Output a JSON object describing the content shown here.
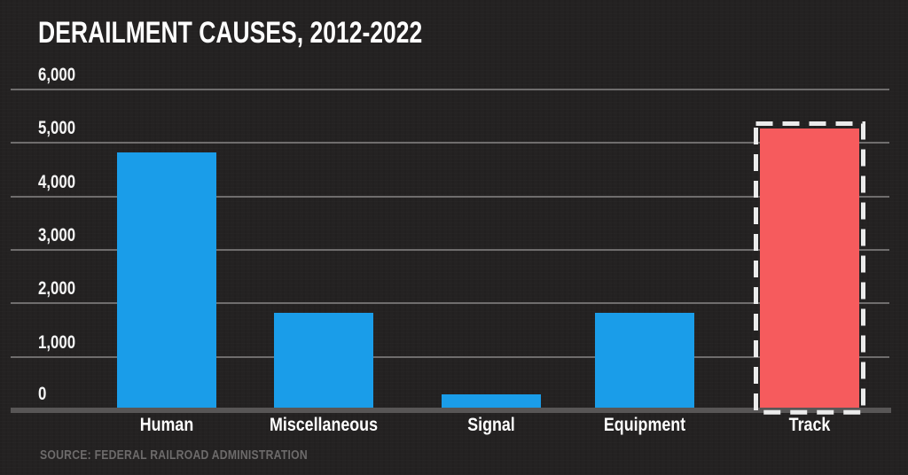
{
  "header": {
    "title": "DERAILMENT CAUSES, 2012-2022"
  },
  "footer": {
    "source": "SOURCE: FEDERAL RAILROAD ADMINISTRATION"
  },
  "chart_data": {
    "type": "bar",
    "title": "DERAILMENT CAUSES, 2012-2022",
    "categories": [
      "Human",
      "Miscellaneous",
      "Signal",
      "Equipment",
      "Track"
    ],
    "values": [
      4800,
      1800,
      280,
      1800,
      5250
    ],
    "highlighted_category": "Track",
    "highlight_style": "white-dashed-outline",
    "xlabel": "",
    "ylabel": "",
    "ylim": [
      0,
      6000
    ],
    "ytick_interval": 1000,
    "ytick_labels_desc": [
      "6,000",
      "5,000",
      "4,000",
      "3,000",
      "2,000",
      "1,000",
      "0"
    ],
    "grid": true,
    "legend_position": "none"
  },
  "colors": {
    "background": "#242222",
    "gridline": "#6f6d6d",
    "baseline": "#585656",
    "axis_text": "#f5f5f5",
    "category_text": "#ffffff",
    "source_text": "#6d6b6b",
    "bar_color": "#1a9de9",
    "highlight_color": "#f65b5d",
    "highlight_outline_color": "#ebebeb"
  }
}
